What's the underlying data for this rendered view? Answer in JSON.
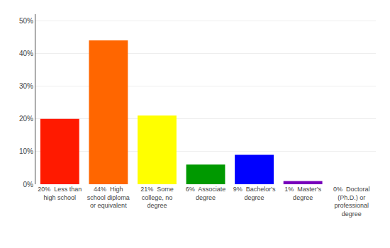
{
  "chart_data": {
    "type": "bar",
    "categories": [
      "20%  Less than\nhigh school",
      "44%  High\nschool diploma\nor equivalent",
      "21%  Some\ncollege, no\ndegree",
      "6%  Associate\ndegree",
      "9%  Bachelor's\ndegree",
      "1%  Master's\ndegree",
      "0%  Doctoral\n(Ph.D.) or\nprofessional\ndegree"
    ],
    "values": [
      20,
      44,
      21,
      6,
      9,
      1,
      0
    ],
    "colors": [
      "#ff1a00",
      "#ff6600",
      "#ffff00",
      "#009900",
      "#0000ff",
      "#7700bb",
      "#ff00ff"
    ],
    "ylim": [
      0,
      52
    ],
    "yticks": [
      {
        "value": 0,
        "label": "0%"
      },
      {
        "value": 10,
        "label": "10%"
      },
      {
        "value": 20,
        "label": "20%"
      },
      {
        "value": 30,
        "label": "30%"
      },
      {
        "value": 40,
        "label": "40%"
      },
      {
        "value": 50,
        "label": "50%"
      }
    ],
    "grid": true
  }
}
